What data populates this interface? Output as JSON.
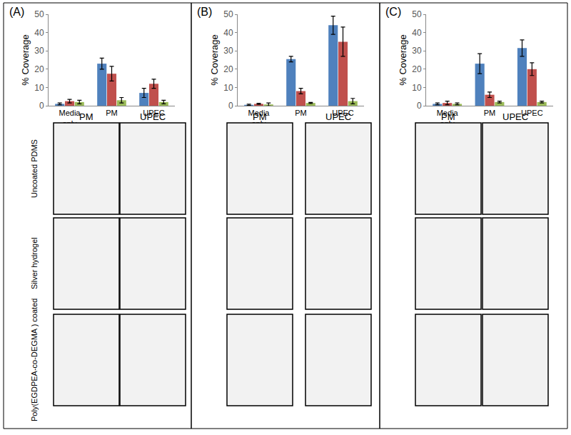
{
  "chart_data": [
    {
      "type": "bar",
      "title": "(A)",
      "y_label": "% Coverage",
      "categories": [
        "Media only",
        "PM",
        "UPEC"
      ],
      "series": [
        {
          "color": "#4f81bd",
          "values": [
            1,
            23,
            7
          ],
          "errors": [
            0.5,
            3,
            2.5
          ]
        },
        {
          "color": "#c0504d",
          "values": [
            2.5,
            17.5,
            12
          ],
          "errors": [
            1,
            4,
            2.5
          ]
        },
        {
          "color": "#9bbb59",
          "values": [
            2,
            3,
            2
          ],
          "errors": [
            1,
            1.5,
            1
          ]
        }
      ],
      "ylim": [
        0,
        50
      ],
      "yticks": [
        0,
        10,
        20,
        30,
        40,
        50
      ],
      "grid": false,
      "image_columns": [
        "PM",
        "UPEC"
      ]
    },
    {
      "type": "bar",
      "title": "(B)",
      "y_label": "% Coverage",
      "categories": [
        "Media only",
        "PM",
        "UPEC"
      ],
      "series": [
        {
          "color": "#4f81bd",
          "values": [
            0.5,
            25.5,
            44
          ],
          "errors": [
            0.3,
            1.5,
            5
          ]
        },
        {
          "color": "#c0504d",
          "values": [
            1,
            8,
            35
          ],
          "errors": [
            0.3,
            1.5,
            8
          ]
        },
        {
          "color": "#9bbb59",
          "values": [
            0.7,
            1.5,
            2.5
          ],
          "errors": [
            0.8,
            0.3,
            1.5
          ]
        }
      ],
      "ylim": [
        0,
        50
      ],
      "yticks": [
        0,
        10,
        20,
        30,
        40,
        50
      ],
      "grid": false,
      "image_columns": [
        "PM",
        "UPEC"
      ]
    },
    {
      "type": "bar",
      "title": "(C)",
      "y_label": "% Coverage",
      "categories": [
        "Media only",
        "PM",
        "UPEC"
      ],
      "series": [
        {
          "color": "#4f81bd",
          "values": [
            1,
            23,
            31.5
          ],
          "errors": [
            0.5,
            5.5,
            4.5
          ]
        },
        {
          "color": "#c0504d",
          "values": [
            1.5,
            6,
            20
          ],
          "errors": [
            1,
            1.5,
            3.5
          ]
        },
        {
          "color": "#9bbb59",
          "values": [
            1,
            2,
            2
          ],
          "errors": [
            0.5,
            0.5,
            0.5
          ]
        }
      ],
      "ylim": [
        0,
        50
      ],
      "yticks": [
        0,
        10,
        20,
        30,
        40,
        50
      ],
      "grid": false,
      "image_columns": [
        "PM",
        "UPEC"
      ]
    }
  ],
  "image_grid": {
    "row_labels": [
      "Uncoated PDMS",
      "Silver hydrogel",
      "Poly(EGDPEA-co-DEGMA ) coated"
    ]
  }
}
